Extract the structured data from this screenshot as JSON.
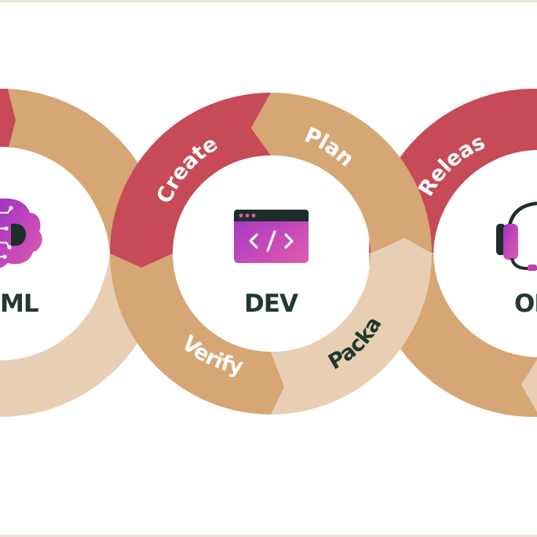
{
  "diagram": {
    "centers": {
      "ml": "ML",
      "dev": "DEV",
      "ops": "OPS"
    },
    "ml_ring": {
      "red": "",
      "tan": "",
      "light": ""
    },
    "dev_ring": {
      "create": "Create",
      "plan": "Plan",
      "verify": "Verify",
      "package": "Package"
    },
    "ops_ring": {
      "release": "Release"
    }
  },
  "icons": {
    "ml": "brain-circuit-icon",
    "dev": "code-window-icon",
    "ops": "headset-icon"
  },
  "colors": {
    "red": "#c64a57",
    "tan": "#d6a675",
    "light": "#e8cfb3",
    "dark_text": "#1f3a2b",
    "white_text": "#ffffff",
    "magenta": "#c23fb0",
    "icon_dark": "#1d2e2a"
  }
}
